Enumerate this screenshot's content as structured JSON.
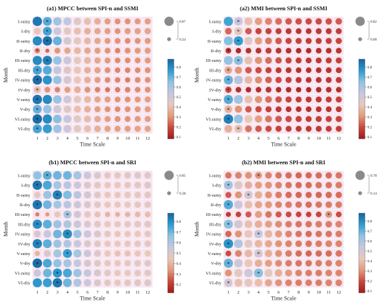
{
  "figure": {
    "background": "#ffffff",
    "cell_background": "#f7e4ef"
  },
  "colormap": {
    "stops": [
      "#9e1b1b",
      "#c9473f",
      "#e29a7b",
      "#e8c8bb",
      "#c7c7de",
      "#8fc3e3",
      "#2d9bd0",
      "#16649f"
    ]
  },
  "chart_data": [
    {
      "id": "a1",
      "type": "heatmap",
      "title": "(a1) MPCC between SPI-n and SSMI",
      "xlabel": "Time Scale",
      "ylabel": "Month",
      "x": [
        "1",
        "2",
        "3",
        "4",
        "5",
        "6",
        "7",
        "8",
        "9",
        "10",
        "11",
        "12"
      ],
      "y": [
        "I-rainy",
        "I-dry",
        "II-rainy",
        "II-dry",
        "III-rainy",
        "III-dry",
        "IV-rainy",
        "IV-dry",
        "V-rainy",
        "V-dry",
        "VI-rainy",
        "VI-dry"
      ],
      "colorbar": {
        "min": 0.08,
        "max": 0.88,
        "ticks": [
          0.1,
          0.2,
          0.3,
          0.4,
          0.5,
          0.6,
          0.7,
          0.8
        ]
      },
      "size_legend": {
        "max": 0.87,
        "min": 0.24
      },
      "values": [
        [
          0.84,
          0.72,
          0.62,
          0.55,
          0.46,
          0.4,
          0.36,
          0.32,
          0.3,
          0.3,
          0.31,
          0.32
        ],
        [
          0.42,
          0.74,
          0.52,
          0.45,
          0.4,
          0.36,
          0.34,
          0.32,
          0.3,
          0.32,
          0.33,
          0.34
        ],
        [
          0.8,
          0.85,
          0.7,
          0.5,
          0.44,
          0.38,
          0.34,
          0.31,
          0.3,
          0.29,
          0.3,
          0.31
        ],
        [
          0.28,
          0.24,
          0.3,
          0.34,
          0.38,
          0.34,
          0.32,
          0.3,
          0.28,
          0.3,
          0.31,
          0.32
        ],
        [
          0.8,
          0.82,
          0.64,
          0.52,
          0.44,
          0.38,
          0.34,
          0.31,
          0.29,
          0.29,
          0.3,
          0.31
        ],
        [
          0.74,
          0.72,
          0.55,
          0.47,
          0.42,
          0.36,
          0.33,
          0.3,
          0.28,
          0.28,
          0.29,
          0.3
        ],
        [
          0.86,
          0.78,
          0.64,
          0.5,
          0.42,
          0.36,
          0.32,
          0.29,
          0.28,
          0.27,
          0.29,
          0.3
        ],
        [
          0.4,
          0.3,
          0.28,
          0.32,
          0.36,
          0.3,
          0.28,
          0.26,
          0.27,
          0.28,
          0.29,
          0.3
        ],
        [
          0.84,
          0.8,
          0.64,
          0.52,
          0.44,
          0.38,
          0.34,
          0.32,
          0.3,
          0.3,
          0.31,
          0.32
        ],
        [
          0.7,
          0.64,
          0.52,
          0.46,
          0.4,
          0.36,
          0.32,
          0.3,
          0.29,
          0.3,
          0.31,
          0.32
        ],
        [
          0.86,
          0.8,
          0.66,
          0.54,
          0.45,
          0.39,
          0.35,
          0.32,
          0.3,
          0.3,
          0.31,
          0.32
        ],
        [
          0.74,
          0.76,
          0.62,
          0.52,
          0.45,
          0.4,
          0.36,
          0.33,
          0.32,
          0.32,
          0.33,
          0.33
        ]
      ],
      "markers": [
        [
          0,
          1
        ],
        [
          1,
          1
        ],
        [
          2,
          1
        ],
        [
          3,
          0
        ],
        [
          4,
          1
        ],
        [
          5,
          0
        ],
        [
          6,
          0
        ],
        [
          7,
          0
        ],
        [
          8,
          0
        ],
        [
          9,
          0
        ],
        [
          10,
          0
        ],
        [
          11,
          0
        ]
      ]
    },
    {
      "id": "a2",
      "type": "heatmap",
      "title": "(a2) MMI between SPI-n and SSMI",
      "xlabel": "Time Scale",
      "ylabel": "Month",
      "x": [
        "1",
        "2",
        "3",
        "4",
        "5",
        "6",
        "7",
        "8",
        "9",
        "10",
        "11",
        "12"
      ],
      "y": [
        "I-rainy",
        "I-dry",
        "II-rainy",
        "II-dry",
        "III-rainy",
        "III-dry",
        "IV-rainy",
        "IV-dry",
        "V-rainy",
        "V-dry",
        "VI-rainy",
        "VI-dry"
      ],
      "colorbar": {
        "min": 0.08,
        "max": 0.88,
        "ticks": [
          0.1,
          0.2,
          0.3,
          0.4,
          0.5,
          0.6,
          0.7,
          0.8
        ]
      },
      "size_legend": {
        "max": 0.82,
        "min": 0.08
      },
      "values": [
        [
          0.74,
          0.54,
          0.4,
          0.32,
          0.28,
          0.25,
          0.22,
          0.21,
          0.2,
          0.2,
          0.21,
          0.22
        ],
        [
          0.24,
          0.44,
          0.22,
          0.19,
          0.18,
          0.17,
          0.16,
          0.15,
          0.15,
          0.16,
          0.16,
          0.17
        ],
        [
          0.66,
          0.76,
          0.46,
          0.32,
          0.26,
          0.22,
          0.19,
          0.18,
          0.17,
          0.17,
          0.18,
          0.19
        ],
        [
          0.15,
          0.12,
          0.14,
          0.15,
          0.17,
          0.15,
          0.14,
          0.13,
          0.13,
          0.14,
          0.14,
          0.15
        ],
        [
          0.64,
          0.66,
          0.4,
          0.3,
          0.25,
          0.21,
          0.19,
          0.17,
          0.16,
          0.16,
          0.17,
          0.18
        ],
        [
          0.34,
          0.3,
          0.22,
          0.2,
          0.18,
          0.16,
          0.15,
          0.14,
          0.14,
          0.14,
          0.15,
          0.16
        ],
        [
          0.7,
          0.58,
          0.38,
          0.29,
          0.23,
          0.2,
          0.18,
          0.16,
          0.15,
          0.15,
          0.16,
          0.17
        ],
        [
          0.2,
          0.14,
          0.13,
          0.14,
          0.15,
          0.13,
          0.13,
          0.12,
          0.12,
          0.13,
          0.14,
          0.14
        ],
        [
          0.72,
          0.62,
          0.4,
          0.3,
          0.25,
          0.21,
          0.19,
          0.17,
          0.16,
          0.16,
          0.17,
          0.18
        ],
        [
          0.36,
          0.3,
          0.22,
          0.2,
          0.18,
          0.16,
          0.15,
          0.14,
          0.14,
          0.15,
          0.15,
          0.16
        ],
        [
          0.82,
          0.64,
          0.42,
          0.32,
          0.26,
          0.22,
          0.2,
          0.18,
          0.17,
          0.17,
          0.18,
          0.19
        ],
        [
          0.36,
          0.4,
          0.26,
          0.22,
          0.2,
          0.18,
          0.17,
          0.16,
          0.16,
          0.16,
          0.17,
          0.17
        ]
      ],
      "markers": [
        [
          0,
          1
        ],
        [
          1,
          1
        ],
        [
          2,
          1
        ],
        [
          3,
          0
        ],
        [
          4,
          1
        ],
        [
          5,
          0
        ],
        [
          6,
          0
        ],
        [
          7,
          0
        ],
        [
          8,
          0
        ],
        [
          9,
          0
        ],
        [
          10,
          0
        ],
        [
          11,
          1
        ]
      ]
    },
    {
      "id": "b1",
      "type": "heatmap",
      "title": "(b1) MPCC between SPI-n and SRI",
      "xlabel": "Time Scale",
      "ylabel": "Month",
      "x": [
        "1",
        "2",
        "3",
        "4",
        "5",
        "6",
        "7",
        "8",
        "9",
        "10",
        "11",
        "12"
      ],
      "y": [
        "I-rainy",
        "I-dry",
        "II-rainy",
        "II-dry",
        "III-rainy",
        "III-dry",
        "IV-rainy",
        "IV-dry",
        "V-rainy",
        "V-dry",
        "VI-rainy",
        "VI-dry"
      ],
      "colorbar": {
        "min": 0.12,
        "max": 0.88,
        "ticks": [
          0.2,
          0.3,
          0.4,
          0.5,
          0.6,
          0.7,
          0.8
        ]
      },
      "size_legend": {
        "max": 0.85,
        "min": 0.38
      },
      "values": [
        [
          0.66,
          0.72,
          0.7,
          0.7,
          0.62,
          0.55,
          0.5,
          0.46,
          0.46,
          0.47,
          0.48,
          0.48
        ],
        [
          0.84,
          0.74,
          0.62,
          0.58,
          0.54,
          0.5,
          0.47,
          0.45,
          0.45,
          0.46,
          0.47,
          0.48
        ],
        [
          0.46,
          0.64,
          0.82,
          0.68,
          0.58,
          0.52,
          0.48,
          0.45,
          0.44,
          0.45,
          0.46,
          0.47
        ],
        [
          0.84,
          0.7,
          0.62,
          0.58,
          0.54,
          0.5,
          0.47,
          0.45,
          0.44,
          0.45,
          0.46,
          0.47
        ],
        [
          0.3,
          0.34,
          0.44,
          0.62,
          0.52,
          0.46,
          0.43,
          0.4,
          0.39,
          0.4,
          0.41,
          0.42
        ],
        [
          0.8,
          0.72,
          0.64,
          0.6,
          0.55,
          0.5,
          0.47,
          0.45,
          0.45,
          0.46,
          0.47,
          0.48
        ],
        [
          0.5,
          0.56,
          0.7,
          0.8,
          0.64,
          0.55,
          0.5,
          0.46,
          0.44,
          0.44,
          0.45,
          0.46
        ],
        [
          0.82,
          0.72,
          0.64,
          0.6,
          0.55,
          0.5,
          0.47,
          0.45,
          0.44,
          0.45,
          0.46,
          0.47
        ],
        [
          0.4,
          0.5,
          0.62,
          0.76,
          0.62,
          0.54,
          0.49,
          0.45,
          0.43,
          0.43,
          0.44,
          0.45
        ],
        [
          0.86,
          0.74,
          0.66,
          0.62,
          0.56,
          0.51,
          0.48,
          0.46,
          0.45,
          0.46,
          0.47,
          0.48
        ],
        [
          0.54,
          0.7,
          0.78,
          0.74,
          0.64,
          0.56,
          0.51,
          0.47,
          0.45,
          0.45,
          0.46,
          0.47
        ],
        [
          0.78,
          0.76,
          0.84,
          0.7,
          0.6,
          0.54,
          0.5,
          0.47,
          0.46,
          0.47,
          0.48,
          0.49
        ]
      ],
      "markers": [
        [
          0,
          1
        ],
        [
          1,
          0
        ],
        [
          2,
          2
        ],
        [
          3,
          0
        ],
        [
          4,
          3
        ],
        [
          5,
          0
        ],
        [
          6,
          3
        ],
        [
          7,
          0
        ],
        [
          8,
          3
        ],
        [
          9,
          0
        ],
        [
          10,
          2
        ],
        [
          11,
          2
        ]
      ]
    },
    {
      "id": "b2",
      "type": "heatmap",
      "title": "(b2) MMI between SPI-n and SRI",
      "xlabel": "Time Scale",
      "ylabel": "Month",
      "x": [
        "1",
        "2",
        "3",
        "4",
        "5",
        "6",
        "7",
        "8",
        "9",
        "10",
        "11",
        "12"
      ],
      "y": [
        "I-rainy",
        "I-dry",
        "II-rainy",
        "II-dry",
        "III-rainy",
        "III-dry",
        "IV-rainy",
        "IV-dry",
        "V-rainy",
        "V-dry",
        "VI-rainy",
        "VI-dry"
      ],
      "colorbar": {
        "min": 0.08,
        "max": 0.88,
        "ticks": [
          0.1,
          0.2,
          0.3,
          0.4,
          0.5,
          0.6,
          0.7,
          0.8
        ]
      },
      "size_legend": {
        "max": 0.78,
        "min": 0.14
      },
      "values": [
        [
          0.26,
          0.28,
          0.3,
          0.3,
          0.28,
          0.26,
          0.25,
          0.24,
          0.24,
          0.25,
          0.25,
          0.26
        ],
        [
          0.62,
          0.46,
          0.36,
          0.32,
          0.3,
          0.28,
          0.26,
          0.25,
          0.25,
          0.26,
          0.26,
          0.27
        ],
        [
          0.22,
          0.3,
          0.5,
          0.36,
          0.3,
          0.27,
          0.25,
          0.24,
          0.24,
          0.24,
          0.25,
          0.25
        ],
        [
          0.72,
          0.52,
          0.4,
          0.34,
          0.31,
          0.28,
          0.27,
          0.26,
          0.25,
          0.26,
          0.27,
          0.27
        ],
        [
          0.16,
          0.18,
          0.22,
          0.32,
          0.26,
          0.22,
          0.2,
          0.19,
          0.18,
          0.19,
          0.3,
          0.2
        ],
        [
          0.66,
          0.5,
          0.4,
          0.36,
          0.32,
          0.29,
          0.27,
          0.26,
          0.26,
          0.27,
          0.27,
          0.28
        ],
        [
          0.24,
          0.3,
          0.42,
          0.54,
          0.38,
          0.31,
          0.28,
          0.26,
          0.25,
          0.26,
          0.26,
          0.27
        ],
        [
          0.78,
          0.58,
          0.44,
          0.38,
          0.34,
          0.3,
          0.28,
          0.27,
          0.26,
          0.27,
          0.28,
          0.28
        ],
        [
          0.2,
          0.28,
          0.38,
          0.5,
          0.36,
          0.3,
          0.27,
          0.25,
          0.24,
          0.25,
          0.25,
          0.26
        ],
        [
          0.7,
          0.52,
          0.42,
          0.36,
          0.32,
          0.29,
          0.27,
          0.26,
          0.26,
          0.27,
          0.27,
          0.28
        ],
        [
          0.3,
          0.44,
          0.52,
          0.66,
          0.44,
          0.36,
          0.31,
          0.28,
          0.27,
          0.27,
          0.28,
          0.28
        ],
        [
          0.5,
          0.4,
          0.44,
          0.4,
          0.34,
          0.3,
          0.28,
          0.27,
          0.27,
          0.27,
          0.28,
          0.28
        ]
      ],
      "markers": [
        [
          0,
          3
        ],
        [
          1,
          0
        ],
        [
          2,
          2
        ],
        [
          3,
          0
        ],
        [
          4,
          10
        ],
        [
          5,
          0
        ],
        [
          6,
          3
        ],
        [
          7,
          0
        ],
        [
          8,
          3
        ],
        [
          9,
          0
        ],
        [
          10,
          3
        ],
        [
          11,
          0
        ]
      ]
    }
  ]
}
